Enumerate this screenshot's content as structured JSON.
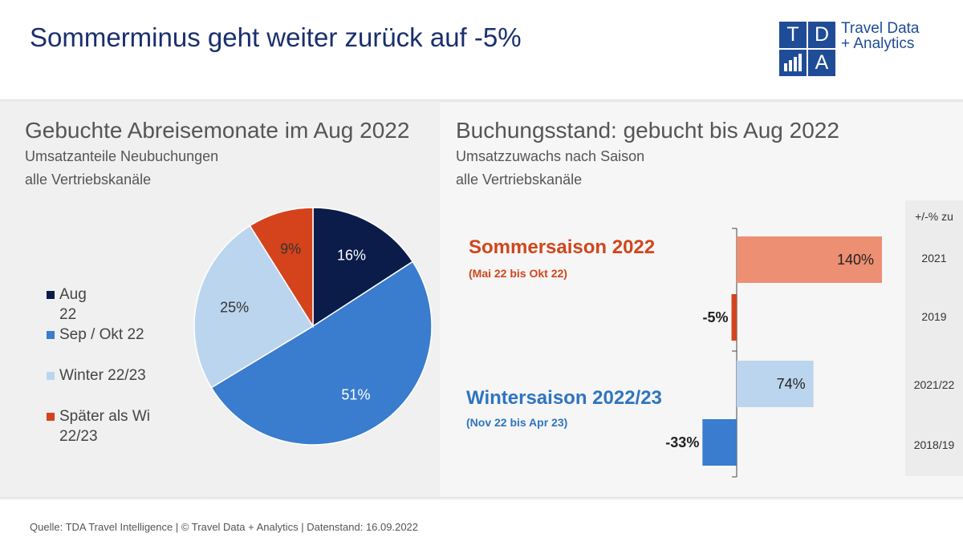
{
  "header": {
    "title": "Sommerminus geht weiter zurück auf -5%",
    "logo": {
      "letters": [
        "T",
        "D",
        "A"
      ],
      "text_line1": "Travel Data",
      "text_line2": "+ Analytics"
    }
  },
  "left_panel": {
    "title": "Gebuchte Abreisemonate im Aug 2022",
    "subtitle1": "Umsatzanteile Neubuchungen",
    "subtitle2": "alle Vertriebskanäle"
  },
  "right_panel": {
    "title": "Buchungsstand: gebucht bis Aug 2022",
    "subtitle1": "Umsatzzuwachs nach Saison",
    "subtitle2": "alle Vertriebskanäle",
    "summer": {
      "title": "Sommersaison 2022",
      "range": "(Mai 22 bis Okt 22)"
    },
    "winter": {
      "title": "Wintersaison 2022/23",
      "range": "(Nov 22 bis Apr 23)"
    },
    "table": {
      "header": "+/-% zu",
      "rows": [
        "2021",
        "2019",
        "2021/22",
        "2018/19"
      ]
    }
  },
  "colors": {
    "navy": "#0b1c4a",
    "blue": "#3a7cce",
    "lightblue": "#bcd5ee",
    "orange": "#d4431c",
    "salmon": "#ec8f72",
    "title_blue": "#1a2f6e",
    "summer_text": "#d0461c",
    "winter_text": "#2f74c0"
  },
  "chart_data": [
    {
      "type": "pie",
      "title": "Gebuchte Abreisemonate im Aug 2022",
      "categories": [
        "Aug 22",
        "Sep / Okt 22",
        "Winter 22/23",
        "Später als Wi 22/23"
      ],
      "values": [
        16,
        51,
        25,
        9
      ],
      "labels": [
        "16%",
        "51%",
        "25%",
        "9%"
      ],
      "colors": [
        "#0b1c4a",
        "#3a7cce",
        "#bcd5ee",
        "#d4431c"
      ],
      "legend": "left"
    },
    {
      "type": "bar",
      "orientation": "horizontal",
      "title": "Buchungsstand: gebucht bis Aug 2022",
      "categories": [
        "2021",
        "2019",
        "2021/22",
        "2018/19"
      ],
      "values": [
        140,
        -5,
        74,
        -33
      ],
      "labels": [
        "140%",
        "-5%",
        "74%",
        "-33%"
      ],
      "colors": [
        "#ec8f72",
        "#d4431c",
        "#bcd5ee",
        "#3a7cce"
      ],
      "groups": [
        "Sommersaison 2022",
        "Sommersaison 2022",
        "Wintersaison 2022/23",
        "Wintersaison 2022/23"
      ]
    }
  ],
  "footer": {
    "text": "Quelle: TDA Travel Intelligence   |   © Travel Data + Analytics   |   Datenstand: 16.09.2022"
  }
}
